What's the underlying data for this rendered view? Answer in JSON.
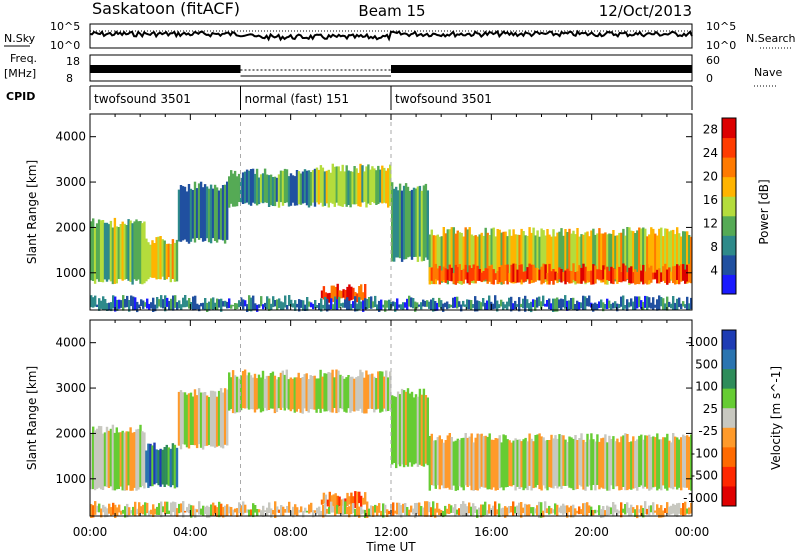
{
  "header": {
    "station": "Saskatoon (fitACF)",
    "beam": "Beam 15",
    "date": "12/Oct/2013"
  },
  "noise_panel": {
    "left_label": "N.Sky",
    "right_label": "N.Search",
    "tick_top": "10^5",
    "tick_bottom": "10^0"
  },
  "freq_panel": {
    "left_label_1": "Freq.",
    "left_label_2": "[MHz]",
    "left_ticks": [
      "18",
      "8"
    ],
    "right_label": "Nave",
    "right_ticks": [
      "60",
      "0"
    ]
  },
  "cpid": {
    "label": "CPID",
    "segments": [
      {
        "name": "twofsound 3501",
        "start": 0,
        "end": 6
      },
      {
        "name": "normal (fast) 151",
        "start": 6,
        "end": 12
      },
      {
        "name": "twofsound 3501",
        "start": 12,
        "end": 24
      }
    ]
  },
  "time_axis": {
    "xlabel": "Time UT",
    "ticks": [
      "00:00",
      "04:00",
      "08:00",
      "12:00",
      "16:00",
      "20:00",
      "00:00"
    ],
    "range_hours": [
      0,
      24
    ]
  },
  "range_axis": {
    "ylabel": "Slant Range [km]",
    "ticks": [
      "1000",
      "2000",
      "3000",
      "4000"
    ],
    "range_km": [
      180,
      4500
    ]
  },
  "colors": {
    "power": [
      "#1a1aff",
      "#2050a0",
      "#2e8a8a",
      "#55aa55",
      "#b4dc3c",
      "#ffb400",
      "#ff7a00",
      "#ff3c00",
      "#dc0000"
    ],
    "velocity": [
      "#1e3cb4",
      "#2a74b0",
      "#2e8c5a",
      "#66cc33",
      "#c8c8c0",
      "#ff9a2a",
      "#ff6a00",
      "#ff2800",
      "#e00000"
    ],
    "marker": "#000000"
  },
  "chart_data": [
    {
      "type": "heatmap",
      "panel": "power",
      "colorbar_label": "Power [dB]",
      "colorbar_ticks": [
        "4",
        "8",
        "12",
        "16",
        "20",
        "24",
        "28"
      ],
      "colorbar_range": [
        0,
        30
      ],
      "x_unit": "hours UT",
      "y_unit": "km",
      "regions": [
        {
          "x": [
            0.0,
            2.2
          ],
          "y": [
            800,
            2100
          ],
          "level": 0.45
        },
        {
          "x": [
            2.2,
            3.5
          ],
          "y": [
            850,
            1700
          ],
          "level": 0.55
        },
        {
          "x": [
            3.5,
            5.5
          ],
          "y": [
            1700,
            2900
          ],
          "level": 0.25
        },
        {
          "x": [
            5.5,
            9.0
          ],
          "y": [
            2500,
            3200
          ],
          "level": 0.3
        },
        {
          "x": [
            9.0,
            12.0
          ],
          "y": [
            2500,
            3300
          ],
          "level": 0.45
        },
        {
          "x": [
            12.0,
            13.5
          ],
          "y": [
            1300,
            2900
          ],
          "level": 0.35
        },
        {
          "x": [
            13.5,
            24.0
          ],
          "y": [
            800,
            1900
          ],
          "level": 0.55
        },
        {
          "x": [
            13.5,
            24.0
          ],
          "y": [
            800,
            1100
          ],
          "level": 0.85
        },
        {
          "x": [
            9.2,
            11.0
          ],
          "y": [
            400,
            650
          ],
          "level": 0.9
        },
        {
          "x": [
            0.0,
            24.0
          ],
          "y": [
            200,
            400
          ],
          "level": 0.2
        }
      ]
    },
    {
      "type": "heatmap",
      "panel": "velocity",
      "colorbar_label": "Velocity [m s^-1]",
      "colorbar_ticks": [
        "1000",
        "500",
        "100",
        "25",
        "-25",
        "-100",
        "-500",
        "-1000"
      ],
      "x_unit": "hours UT",
      "y_unit": "km",
      "regions": [
        {
          "x": [
            0.0,
            2.2
          ],
          "y": [
            800,
            2100
          ],
          "level": 0.5
        },
        {
          "x": [
            2.2,
            3.5
          ],
          "y": [
            850,
            1700
          ],
          "level": 0.2
        },
        {
          "x": [
            3.5,
            5.5
          ],
          "y": [
            1700,
            2900
          ],
          "level": 0.5
        },
        {
          "x": [
            5.5,
            12.0
          ],
          "y": [
            2500,
            3300
          ],
          "level": 0.5
        },
        {
          "x": [
            12.0,
            13.5
          ],
          "y": [
            1300,
            2900
          ],
          "level": 0.5
        },
        {
          "x": [
            13.5,
            24.0
          ],
          "y": [
            800,
            1900
          ],
          "level": 0.5
        },
        {
          "x": [
            9.2,
            11.0
          ],
          "y": [
            400,
            650
          ],
          "level": 0.7
        },
        {
          "x": [
            0.0,
            24.0
          ],
          "y": [
            200,
            400
          ],
          "level": 0.55
        }
      ]
    }
  ]
}
